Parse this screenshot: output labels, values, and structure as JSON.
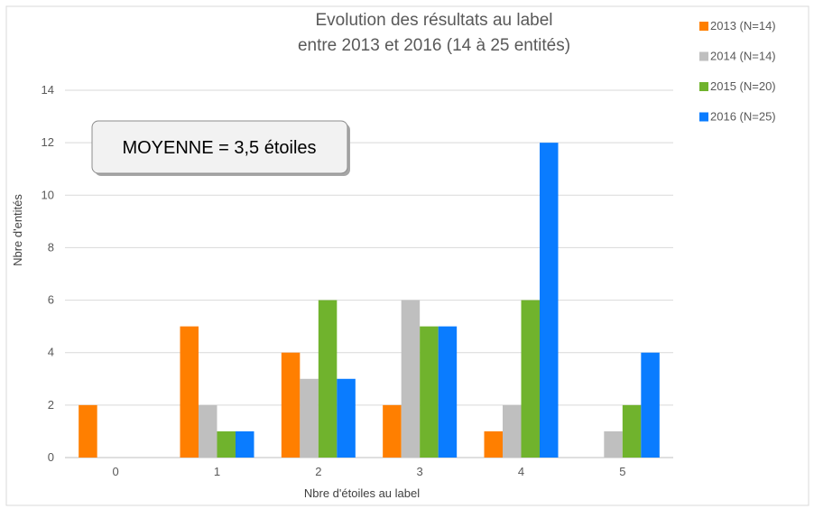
{
  "chart_data": {
    "type": "bar",
    "title_lines": [
      "Evolution des résultats au label",
      "entre 2013 et 2016 (14 à 25 entités)"
    ],
    "xlabel": "Nbre d'étoiles au label",
    "ylabel": "Nbre d'entités",
    "categories": [
      "0",
      "1",
      "2",
      "3",
      "4",
      "5"
    ],
    "ylim": [
      0,
      14
    ],
    "yticks": [
      "0",
      "2",
      "4",
      "6",
      "8",
      "10",
      "12",
      "14"
    ],
    "grid": true,
    "legend_position": "top-right",
    "series": [
      {
        "name": "2013 (N=14)",
        "color": "#ff7f00",
        "values": [
          2,
          5,
          4,
          2,
          1,
          0
        ]
      },
      {
        "name": "2014 (N=14)",
        "color": "#bfbfbf",
        "values": [
          0,
          2,
          3,
          6,
          2,
          1
        ]
      },
      {
        "name": "2015 (N=20)",
        "color": "#70b32d",
        "values": [
          0,
          1,
          6,
          5,
          6,
          2
        ]
      },
      {
        "name": "2016 (N=25)",
        "color": "#0a7cff",
        "values": [
          0,
          1,
          3,
          5,
          12,
          4
        ]
      }
    ],
    "annotation": "MOYENNE = 3,5 étoiles"
  }
}
